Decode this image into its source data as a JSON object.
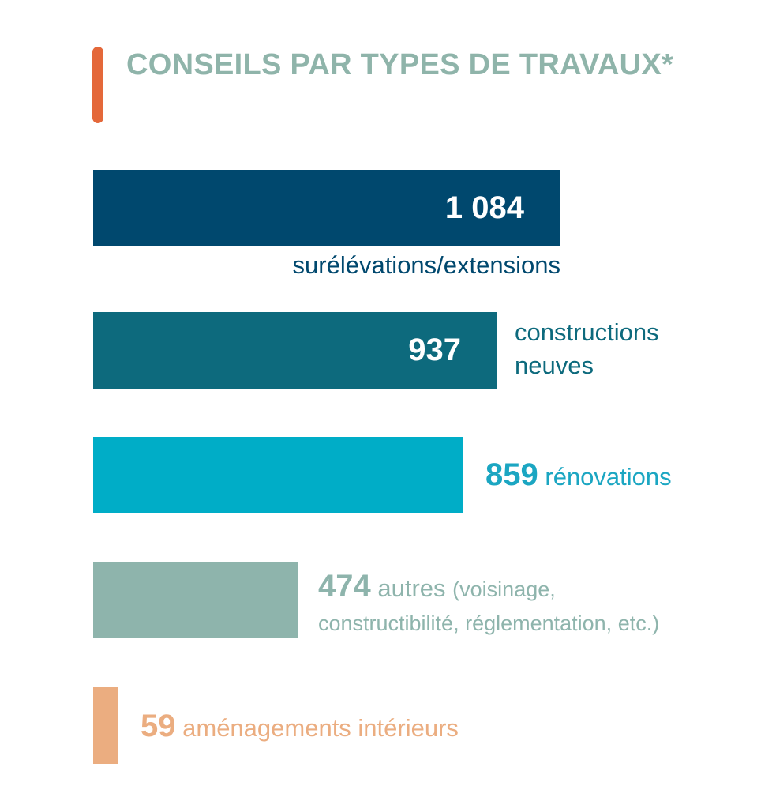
{
  "colors": {
    "accent": "#e4683a",
    "title": "#8fb4aa"
  },
  "chart_data": {
    "type": "bar",
    "orientation": "horizontal",
    "title": "CONSEILS PAR TYPES DE TRAVAUX*",
    "xlim": [
      0,
      1084
    ],
    "categories": [
      "surélévations/extensions",
      "constructions neuves",
      "rénovations",
      "autres (voisinage, constructibilité, réglementation, etc.)",
      "aménagements intérieurs"
    ],
    "values": [
      1084,
      937,
      859,
      474,
      59
    ],
    "value_labels": [
      "1 084",
      "937",
      "859",
      "474",
      "59"
    ],
    "bar_colors": [
      "#00486e",
      "#0d6a7d",
      "#00adc7",
      "#8eb4ac",
      "#ebad80"
    ],
    "label_colors": [
      "#00486e",
      "#0d6a7d",
      "#1ba6c2",
      "#8eb4ac",
      "#ebad80"
    ],
    "label_parts": [
      {
        "main": "surélévations/extensions"
      },
      {
        "main": "constructions",
        "line2": "neuves"
      },
      {
        "main": "rénovations"
      },
      {
        "main": "autres",
        "extra": "(voisinage,",
        "line2": "constructibilité, réglementation, etc.)"
      },
      {
        "main": "aménagements intérieurs"
      }
    ]
  }
}
